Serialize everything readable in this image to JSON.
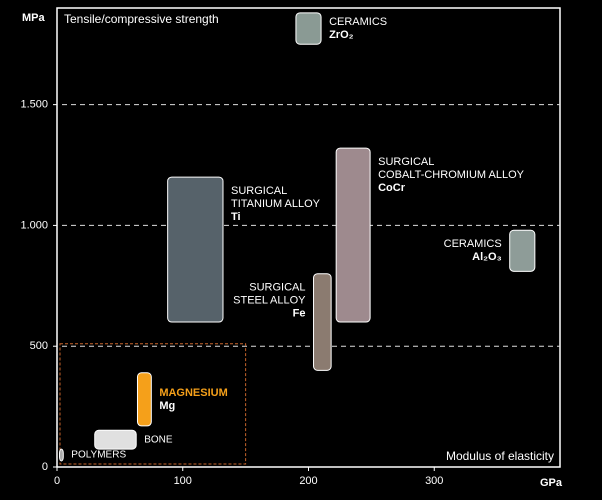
{
  "chart_data": {
    "type": "range",
    "title": "Tensile/compressive strength",
    "x_label": "Modulus of elasticity",
    "y_unit": "MPa",
    "x_unit": "GPa",
    "xlim": [
      0,
      400
    ],
    "ylim": [
      0,
      1900
    ],
    "xticks": [
      0,
      100,
      200,
      300
    ],
    "yticks": [
      0,
      500,
      {
        "value": 1000,
        "label": "1.000"
      },
      {
        "value": 1500,
        "label": "1.500"
      }
    ],
    "grid": true,
    "highlight_region": {
      "x": [
        0,
        150
      ],
      "y": [
        0,
        510
      ],
      "color": "#c8642a"
    },
    "series": [
      {
        "label_lines": [
          "CERAMICS"
        ],
        "symbol": "ZrO₂",
        "x_range": [
          190,
          210
        ],
        "y_range": [
          1750,
          1880
        ],
        "color": "#8a9a94"
      },
      {
        "label_lines": [
          "SURGICAL",
          "TITANIUM ALLOY"
        ],
        "symbol": "Ti",
        "x_range": [
          88,
          132
        ],
        "y_range": [
          600,
          1200
        ],
        "color": "#56626a"
      },
      {
        "label_lines": [
          "SURGICAL",
          "STEEL ALLOY"
        ],
        "symbol": "Fe",
        "x_range": [
          204,
          218
        ],
        "y_range": [
          400,
          800
        ],
        "color": "#8b7b70"
      },
      {
        "label_lines": [
          "SURGICAL",
          "COBALT-CHROMIUM ALLOY"
        ],
        "symbol": "CoCr",
        "x_range": [
          222,
          249
        ],
        "y_range": [
          600,
          1320
        ],
        "color": "#9e8a8e"
      },
      {
        "label_lines": [
          "CERAMICS"
        ],
        "symbol": "Al₂O₃",
        "x_range": [
          360,
          380
        ],
        "y_range": [
          810,
          980
        ],
        "color": "#8e9c98"
      },
      {
        "label_lines": [
          "MAGNESIUM"
        ],
        "symbol": "Mg",
        "x_range": [
          64,
          75
        ],
        "y_range": [
          170,
          390
        ],
        "color": "#f5a01a"
      },
      {
        "label_lines": [
          "BONE"
        ],
        "x_range": [
          30,
          63
        ],
        "y_range": [
          74,
          152
        ],
        "color": "#e0e0e0"
      },
      {
        "label_lines": [
          "POLYMERS"
        ],
        "x_range": [
          2,
          5
        ],
        "y_range": [
          25,
          74
        ],
        "color": "#aaaaaa"
      }
    ]
  }
}
